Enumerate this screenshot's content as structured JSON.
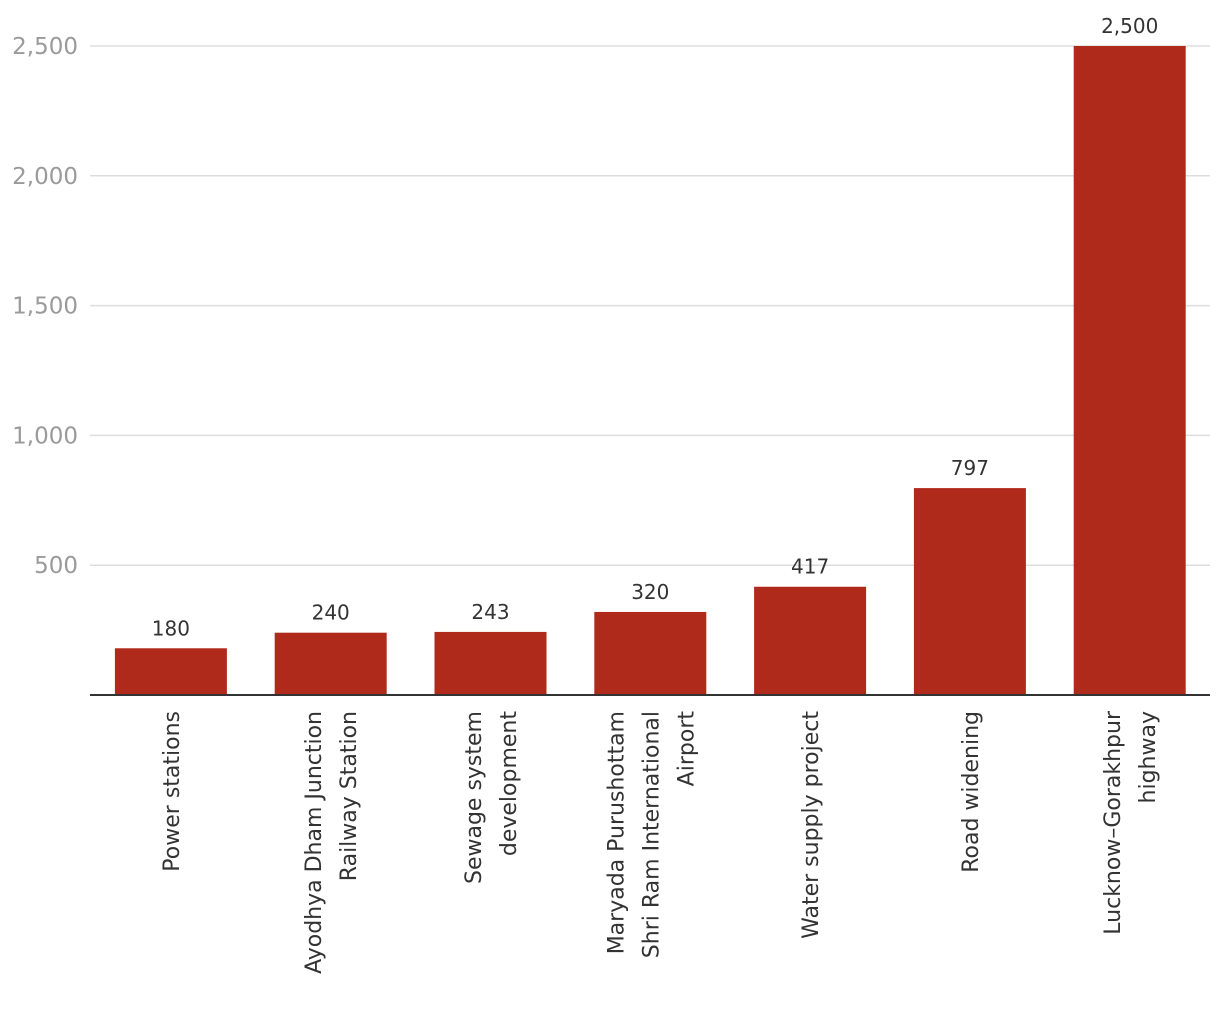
{
  "chart_data": {
    "type": "bar",
    "title": "",
    "xlabel": "",
    "ylabel": "",
    "ylim": [
      0,
      2500
    ],
    "yticks": [
      500,
      1000,
      1500,
      2000,
      2500
    ],
    "ytick_labels": [
      "500",
      "1,000",
      "1,500",
      "2,000",
      "2,500"
    ],
    "grid": true,
    "categories": [
      [
        "Power stations"
      ],
      [
        "Ayodhya Dham Junction",
        "Railway Station"
      ],
      [
        "Sewage system",
        "development"
      ],
      [
        "Maryada Purushottam",
        "Shri Ram International",
        "Airport"
      ],
      [
        "Water supply project"
      ],
      [
        "Road widening"
      ],
      [
        "Lucknow–Gorakhpur",
        "highway"
      ]
    ],
    "values": [
      180,
      240,
      243,
      320,
      417,
      797,
      2500
    ],
    "value_labels": [
      "180",
      "240",
      "243",
      "320",
      "417",
      "797",
      "2,500"
    ],
    "colors": {
      "bar": "#b02a1b",
      "grid": "#dddddd",
      "axis": "#333333",
      "tick_text": "#9a9a9a",
      "label_text": "#333333"
    }
  }
}
